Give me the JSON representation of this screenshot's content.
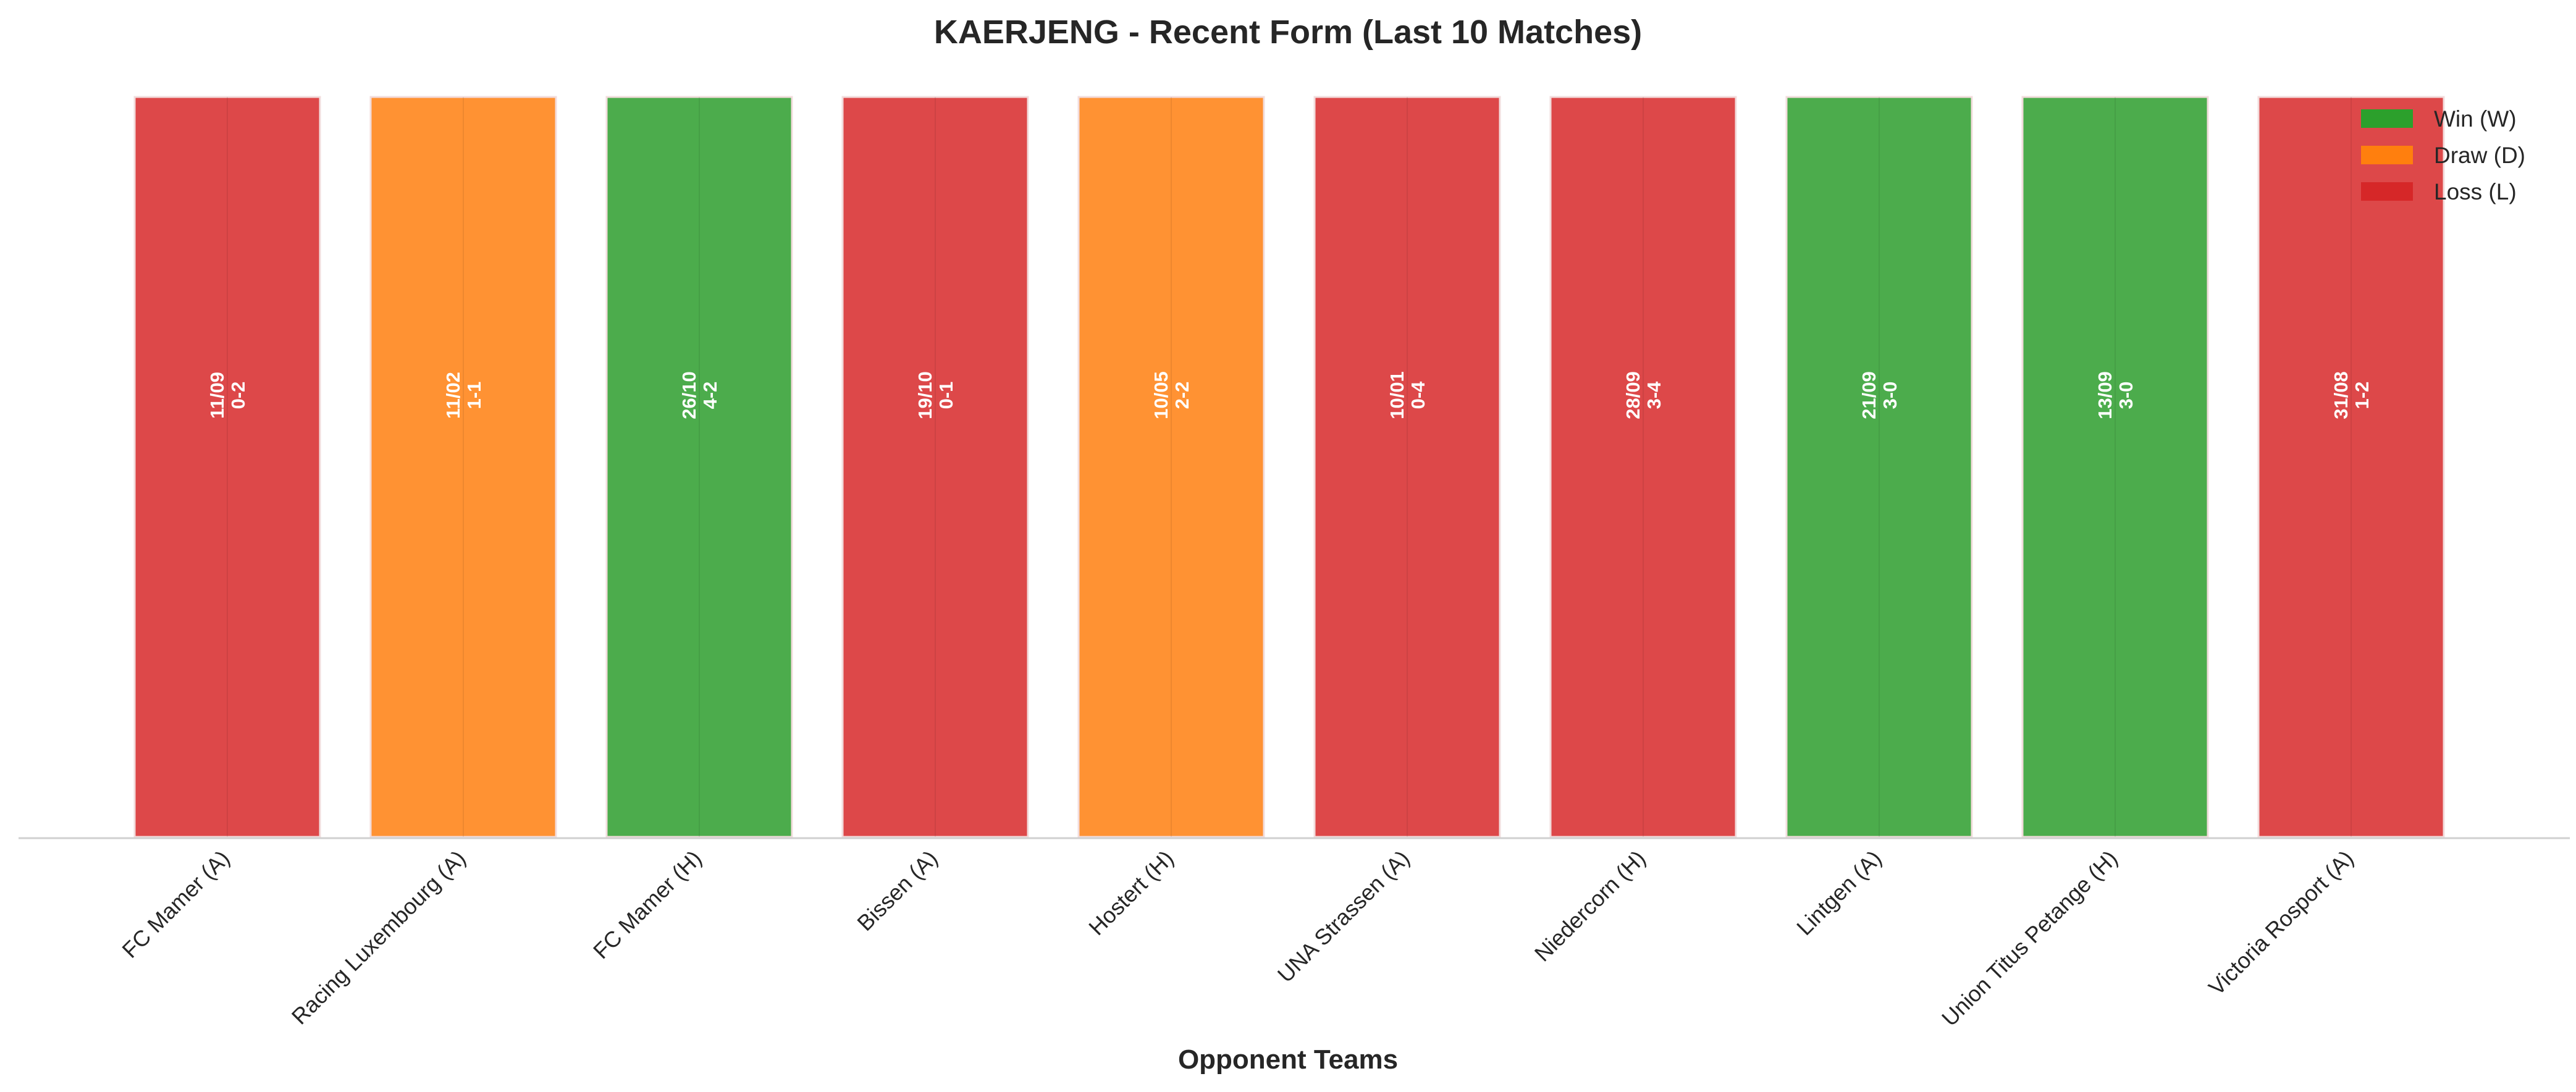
{
  "chart_data": {
    "type": "bar",
    "title": "KAERJENG - Recent Form (Last 10 Matches)",
    "xlabel": "Opponent Teams",
    "ylabel": "",
    "ylim": [
      0,
      1
    ],
    "grid": false,
    "legend_position": "top-right",
    "categories": [
      "FC Mamer (A)",
      "Racing Luxembourg (A)",
      "FC Mamer (H)",
      "Bissen (A)",
      "Hostert (H)",
      "UNA Strassen (A)",
      "Niedercorn (H)",
      "Lintgen (A)",
      "Union Titus Petange (H)",
      "Victoria Rosport (A)"
    ],
    "values": [
      1,
      1,
      1,
      1,
      1,
      1,
      1,
      1,
      1,
      1
    ],
    "results": [
      "L",
      "D",
      "W",
      "L",
      "D",
      "L",
      "L",
      "W",
      "W",
      "L"
    ],
    "dates": [
      "11/09",
      "11/02",
      "26/10",
      "19/10",
      "10/05",
      "10/01",
      "28/09",
      "21/09",
      "13/09",
      "31/08"
    ],
    "scores": [
      "0-2",
      "1-1",
      "4-2",
      "0-1",
      "2-2",
      "0-4",
      "3-4",
      "3-0",
      "3-0",
      "1-2"
    ],
    "legend": [
      {
        "key": "W",
        "label": "Win (W)",
        "color": "#2ca02c"
      },
      {
        "key": "D",
        "label": "Draw (D)",
        "color": "#ff7f0e"
      },
      {
        "key": "L",
        "label": "Loss (L)",
        "color": "#d62728"
      }
    ],
    "bar_colors": {
      "W": "#4cac4c",
      "D": "#ff9233",
      "L": "#dd4849"
    }
  }
}
